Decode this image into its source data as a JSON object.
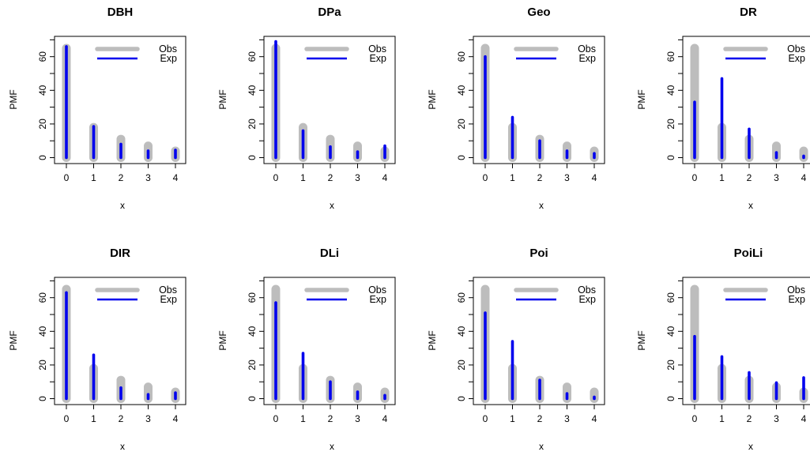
{
  "colors": {
    "observed": "#bdbdbd",
    "expected": "#0000ee",
    "axis": "#000000"
  },
  "chart_data": [
    {
      "type": "bar",
      "title": "DBH",
      "xlabel": "x",
      "ylabel": "PMF",
      "categories": [
        "0",
        "1",
        "2",
        "3",
        "4"
      ],
      "ylim": [
        0,
        70
      ],
      "yticks": [
        "0",
        "20",
        "40",
        "60"
      ],
      "legend": "top-right",
      "grid": false,
      "series": [
        {
          "name": "Obs",
          "values": [
            65,
            18,
            11,
            7,
            4
          ]
        },
        {
          "name": "Exp",
          "values": [
            66,
            18.5,
            8,
            4,
            4.5
          ]
        }
      ]
    },
    {
      "type": "bar",
      "title": "DPa",
      "xlabel": "x",
      "ylabel": "PMF",
      "categories": [
        "0",
        "1",
        "2",
        "3",
        "4"
      ],
      "ylim": [
        0,
        70
      ],
      "yticks": [
        "0",
        "20",
        "40",
        "60"
      ],
      "legend": "top-right",
      "grid": false,
      "series": [
        {
          "name": "Obs",
          "values": [
            65,
            18,
            11,
            7,
            4
          ]
        },
        {
          "name": "Exp",
          "values": [
            69,
            16,
            6.5,
            3.5,
            7
          ]
        }
      ]
    },
    {
      "type": "bar",
      "title": "Geo",
      "xlabel": "x",
      "ylabel": "PMF",
      "categories": [
        "0",
        "1",
        "2",
        "3",
        "4"
      ],
      "ylim": [
        0,
        70
      ],
      "yticks": [
        "0",
        "20",
        "40",
        "60"
      ],
      "legend": "top-right",
      "grid": false,
      "series": [
        {
          "name": "Obs",
          "values": [
            65,
            18,
            11,
            7,
            4
          ]
        },
        {
          "name": "Exp",
          "values": [
            60,
            24,
            10,
            4,
            2.5
          ]
        }
      ]
    },
    {
      "type": "bar",
      "title": "DR",
      "xlabel": "x",
      "ylabel": "PMF",
      "categories": [
        "0",
        "1",
        "2",
        "3",
        "4"
      ],
      "ylim": [
        0,
        70
      ],
      "yticks": [
        "0",
        "20",
        "40",
        "60"
      ],
      "legend": "top-right",
      "grid": false,
      "series": [
        {
          "name": "Obs",
          "values": [
            65,
            18,
            11,
            7,
            4
          ]
        },
        {
          "name": "Exp",
          "values": [
            33,
            47,
            17,
            3,
            1
          ]
        }
      ]
    },
    {
      "type": "bar",
      "title": "DIR",
      "xlabel": "x",
      "ylabel": "PMF",
      "categories": [
        "0",
        "1",
        "2",
        "3",
        "4"
      ],
      "ylim": [
        0,
        70
      ],
      "yticks": [
        "0",
        "20",
        "40",
        "60"
      ],
      "legend": "top-right",
      "grid": false,
      "series": [
        {
          "name": "Obs",
          "values": [
            65,
            18,
            11,
            7,
            4
          ]
        },
        {
          "name": "Exp",
          "values": [
            63,
            26,
            6.5,
            2.5,
            3.5
          ]
        }
      ]
    },
    {
      "type": "bar",
      "title": "DLi",
      "xlabel": "x",
      "ylabel": "PMF",
      "categories": [
        "0",
        "1",
        "2",
        "3",
        "4"
      ],
      "ylim": [
        0,
        70
      ],
      "yticks": [
        "0",
        "20",
        "40",
        "60"
      ],
      "legend": "top-right",
      "grid": false,
      "series": [
        {
          "name": "Obs",
          "values": [
            65,
            18,
            11,
            7,
            4
          ]
        },
        {
          "name": "Exp",
          "values": [
            57,
            27,
            10,
            4,
            2
          ]
        }
      ]
    },
    {
      "type": "bar",
      "title": "Poi",
      "xlabel": "x",
      "ylabel": "PMF",
      "categories": [
        "0",
        "1",
        "2",
        "3",
        "4"
      ],
      "ylim": [
        0,
        70
      ],
      "yticks": [
        "0",
        "20",
        "40",
        "60"
      ],
      "legend": "top-right",
      "grid": false,
      "series": [
        {
          "name": "Obs",
          "values": [
            65,
            18,
            11,
            7,
            4
          ]
        },
        {
          "name": "Exp",
          "values": [
            51,
            34,
            11,
            3,
            1
          ]
        }
      ]
    },
    {
      "type": "bar",
      "title": "PoiLi",
      "xlabel": "x",
      "ylabel": "PMF",
      "categories": [
        "0",
        "1",
        "2",
        "3",
        "4"
      ],
      "ylim": [
        0,
        70
      ],
      "yticks": [
        "0",
        "20",
        "40",
        "60"
      ],
      "legend": "top-right",
      "grid": false,
      "series": [
        {
          "name": "Obs",
          "values": [
            65,
            18,
            11,
            7,
            4
          ]
        },
        {
          "name": "Exp",
          "values": [
            37,
            25,
            15.5,
            9.5,
            12.5
          ]
        }
      ]
    }
  ]
}
